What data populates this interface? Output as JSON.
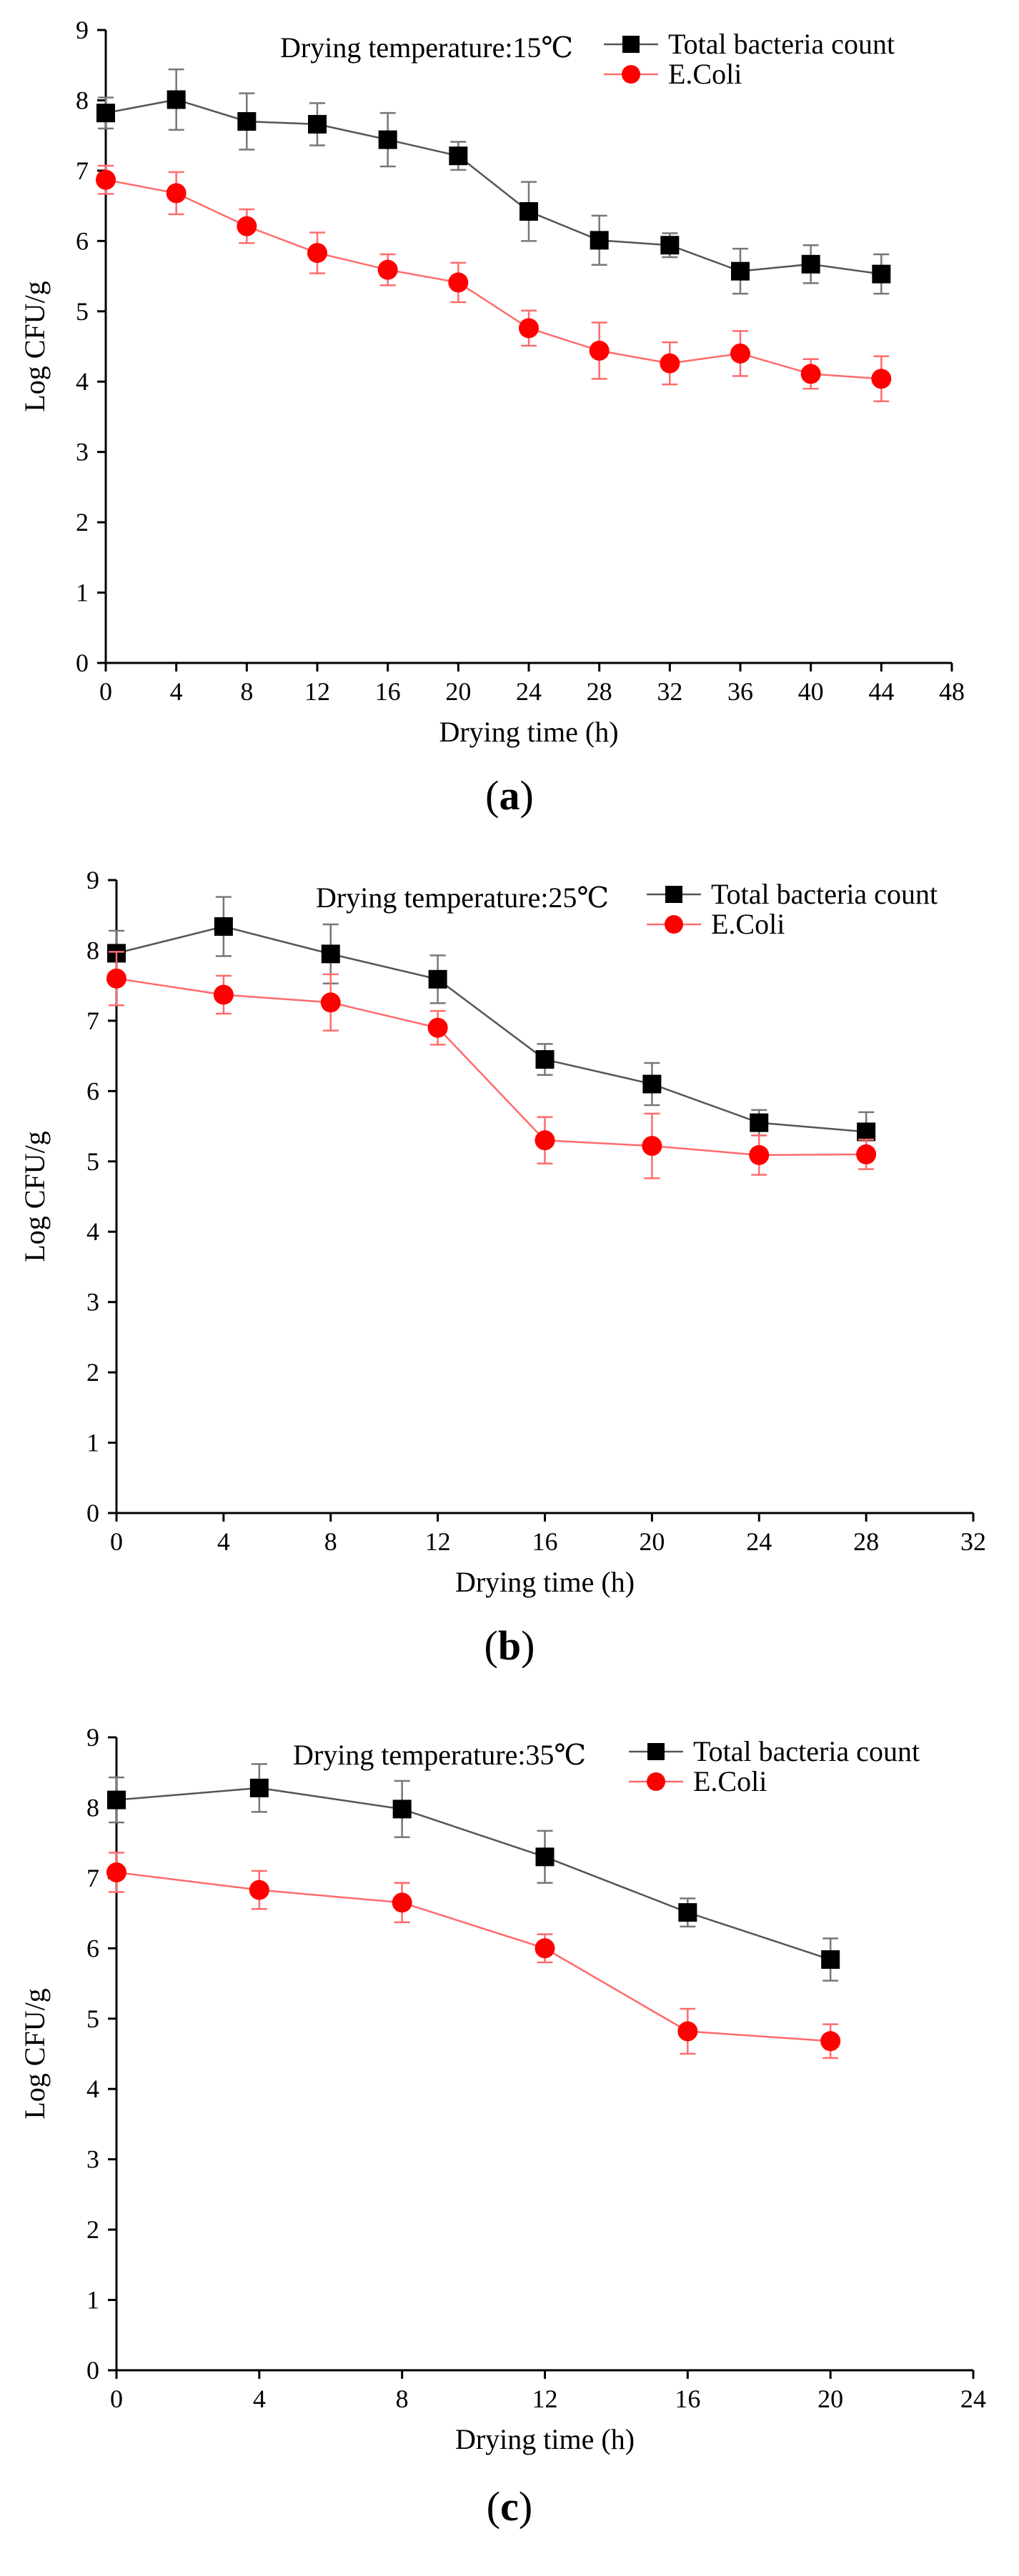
{
  "chart_data": [
    {
      "type": "line",
      "panel_label": "a",
      "annotation": "Drying temperature:15℃",
      "xlabel": "Drying time (h)",
      "ylabel": "Log CFU/g",
      "xlim": [
        0,
        48
      ],
      "ylim": [
        0,
        9
      ],
      "xticks": [
        0,
        4,
        8,
        12,
        16,
        20,
        24,
        28,
        32,
        36,
        40,
        44,
        48
      ],
      "yticks": [
        0,
        1,
        2,
        3,
        4,
        5,
        6,
        7,
        8,
        9
      ],
      "legend_position": "top-right",
      "x": [
        0,
        4,
        8,
        12,
        16,
        20,
        24,
        28,
        32,
        36,
        40,
        44
      ],
      "series": [
        {
          "name": "Total bacteria count",
          "color": "#000000",
          "marker": "square",
          "values": [
            7.82,
            8.01,
            7.7,
            7.66,
            7.44,
            7.21,
            6.42,
            6.01,
            5.94,
            5.57,
            5.67,
            5.53
          ],
          "errors": [
            0.22,
            0.43,
            0.4,
            0.3,
            0.38,
            0.2,
            0.42,
            0.35,
            0.17,
            0.32,
            0.27,
            0.28
          ]
        },
        {
          "name": "E.Coli",
          "color": "#ff0000",
          "marker": "circle",
          "values": [
            6.87,
            6.68,
            6.21,
            5.83,
            5.59,
            5.41,
            4.76,
            4.44,
            4.26,
            4.4,
            4.11,
            4.04
          ],
          "errors": [
            0.2,
            0.3,
            0.24,
            0.29,
            0.22,
            0.28,
            0.25,
            0.4,
            0.3,
            0.32,
            0.21,
            0.32
          ]
        }
      ]
    },
    {
      "type": "line",
      "panel_label": "b",
      "annotation": "Drying temperature:25℃",
      "xlabel": "Drying time (h)",
      "ylabel": "Log CFU/g",
      "xlim": [
        0,
        32
      ],
      "ylim": [
        0,
        9
      ],
      "xticks": [
        0,
        4,
        8,
        12,
        16,
        20,
        24,
        28,
        32
      ],
      "yticks": [
        0,
        1,
        2,
        3,
        4,
        5,
        6,
        7,
        8,
        9
      ],
      "legend_position": "top-right",
      "x": [
        0,
        4,
        8,
        12,
        16,
        20,
        24,
        28
      ],
      "series": [
        {
          "name": "Total bacteria count",
          "color": "#000000",
          "marker": "square",
          "values": [
            7.96,
            8.34,
            7.95,
            7.59,
            6.45,
            6.1,
            5.55,
            5.42
          ],
          "errors": [
            0.32,
            0.42,
            0.42,
            0.34,
            0.22,
            0.3,
            0.18,
            0.28
          ]
        },
        {
          "name": "E.Coli",
          "color": "#ff0000",
          "marker": "circle",
          "values": [
            7.6,
            7.37,
            7.26,
            6.9,
            5.3,
            5.22,
            5.09,
            5.1
          ],
          "errors": [
            0.38,
            0.27,
            0.4,
            0.24,
            0.33,
            0.46,
            0.28,
            0.21
          ]
        }
      ]
    },
    {
      "type": "line",
      "panel_label": "c",
      "annotation": "Drying temperature:35℃",
      "xlabel": "Drying time (h)",
      "ylabel": "Log CFU/g",
      "xlim": [
        0,
        24
      ],
      "ylim": [
        0,
        9
      ],
      "xticks": [
        0,
        4,
        8,
        12,
        16,
        20,
        24
      ],
      "yticks": [
        0,
        1,
        2,
        3,
        4,
        5,
        6,
        7,
        8,
        9
      ],
      "legend_position": "top-right",
      "x": [
        0,
        4,
        8,
        12,
        16,
        20
      ],
      "series": [
        {
          "name": "Total bacteria count",
          "color": "#000000",
          "marker": "square",
          "values": [
            8.11,
            8.28,
            7.98,
            7.3,
            6.51,
            5.84
          ],
          "errors": [
            0.32,
            0.34,
            0.4,
            0.37,
            0.2,
            0.3
          ]
        },
        {
          "name": "E.Coli",
          "color": "#ff0000",
          "marker": "circle",
          "values": [
            7.08,
            6.83,
            6.65,
            6.0,
            4.82,
            4.68
          ],
          "errors": [
            0.28,
            0.27,
            0.28,
            0.2,
            0.32,
            0.24
          ]
        }
      ]
    }
  ]
}
